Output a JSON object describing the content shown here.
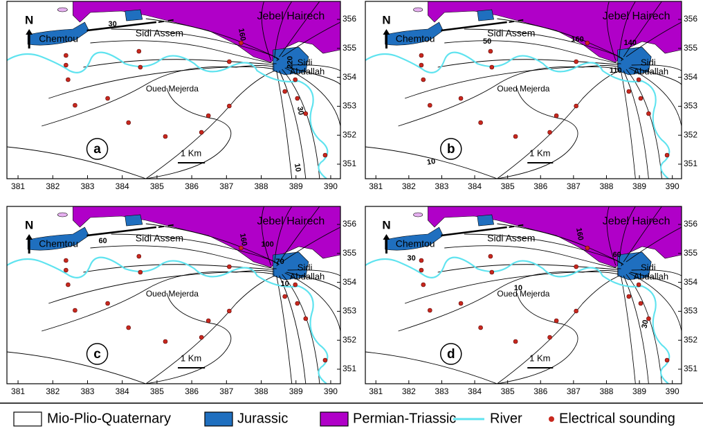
{
  "panels": [
    {
      "label": "a",
      "contour_labels": [
        "30",
        "160",
        "220",
        "30",
        "10"
      ]
    },
    {
      "label": "b",
      "contour_labels": [
        "50",
        "160",
        "140",
        "110",
        "10"
      ]
    },
    {
      "label": "c",
      "contour_labels": [
        "60",
        "160",
        "100",
        "70",
        "10"
      ]
    },
    {
      "label": "d",
      "contour_labels": [
        "30",
        "160",
        "60",
        "10",
        "30"
      ]
    }
  ],
  "map_labels": {
    "north": "N",
    "chemtou": "Chemtou",
    "sidi_assem": "Sidi  Assem",
    "jebel_hairech": "Jebel  Hairech",
    "sidi_abdallah": [
      "Sidi",
      "Abdallah"
    ],
    "oued_mejerda": "Oued Mejerda",
    "scale": "1 Km"
  },
  "x_ticks": [
    381,
    382,
    383,
    384,
    385,
    386,
    387,
    388,
    389,
    390
  ],
  "y_ticks": [
    356,
    355,
    354,
    353,
    352,
    351
  ],
  "legend": [
    "Mio-Plio-Quaternary",
    "Jurassic",
    "Permian-Triassic",
    "River",
    "Electrical sounding"
  ]
}
